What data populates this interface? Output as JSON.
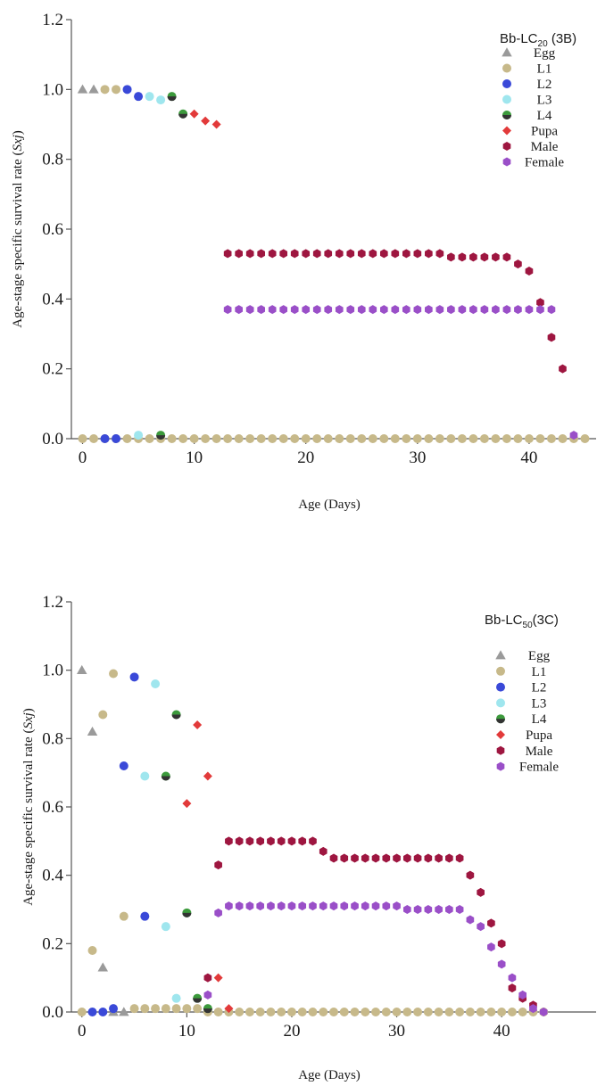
{
  "colors": {
    "Egg": "#9a9a9a",
    "L1": "#c7b98a",
    "L2": "#3a49d8",
    "L3": "#9fe6ee",
    "L4": "#3c9a3c",
    "Pupa": "#e23a3a",
    "Male": "#9e1640",
    "Female": "#9a4fc8"
  },
  "chart_data": [
    {
      "type": "scatter",
      "ylabel": "Age-stage specific survival rate (Sxj)",
      "xlabel": "Age (Days)",
      "xlim": [
        -1,
        46
      ],
      "ylim": [
        0,
        1.2
      ],
      "xticks": [
        "0",
        "10",
        "20",
        "30",
        "40"
      ],
      "yticks": [
        "0.0",
        "0.2",
        "0.4",
        "0.6",
        "0.8",
        "1.0",
        "1.2"
      ],
      "legend": {
        "title": "Bb-LC",
        "title_sub": "20",
        "title_suffix": " (3B)",
        "position": "top-right",
        "entries": [
          "Egg",
          "L1",
          "L2",
          "L3",
          "L4",
          "Pupa",
          "Male",
          "Female"
        ]
      },
      "series": [
        {
          "name": "Egg",
          "x": [
            0,
            1
          ],
          "y": [
            1.0,
            1.0
          ]
        },
        {
          "name": "L1",
          "x": [
            0,
            1,
            2,
            3,
            4,
            5,
            6,
            7,
            8,
            9,
            10,
            11,
            12,
            13,
            14,
            15,
            16,
            17,
            18,
            19,
            20,
            21,
            22,
            23,
            24,
            25,
            26,
            27,
            28,
            29,
            30,
            31,
            32,
            33,
            34,
            35,
            36,
            37,
            38,
            39,
            40,
            41,
            42,
            43,
            44,
            45,
            2,
            3
          ],
          "y": [
            0,
            0,
            0,
            0,
            0,
            0,
            0,
            0,
            0,
            0,
            0,
            0,
            0,
            0,
            0,
            0,
            0,
            0,
            0,
            0,
            0,
            0,
            0,
            0,
            0,
            0,
            0,
            0,
            0,
            0,
            0,
            0,
            0,
            0,
            0,
            0,
            0,
            0,
            0,
            0,
            0,
            0,
            0,
            0,
            0,
            0,
            1.0,
            1.0
          ]
        },
        {
          "name": "L2",
          "x": [
            2,
            3,
            4,
            5
          ],
          "y": [
            0,
            0,
            1.0,
            0.98
          ]
        },
        {
          "name": "L3",
          "x": [
            5,
            6,
            7
          ],
          "y": [
            0.01,
            0.98,
            0.97
          ]
        },
        {
          "name": "L4",
          "x": [
            7,
            8,
            9
          ],
          "y": [
            0.01,
            0.98,
            0.93
          ]
        },
        {
          "name": "Pupa",
          "x": [
            10,
            11,
            12
          ],
          "y": [
            0.93,
            0.91,
            0.9
          ]
        },
        {
          "name": "Male",
          "x": [
            13,
            14,
            15,
            16,
            17,
            18,
            19,
            20,
            21,
            22,
            23,
            24,
            25,
            26,
            27,
            28,
            29,
            30,
            31,
            32,
            33,
            34,
            35,
            36,
            37,
            38,
            39,
            40,
            41,
            42,
            43
          ],
          "y": [
            0.53,
            0.53,
            0.53,
            0.53,
            0.53,
            0.53,
            0.53,
            0.53,
            0.53,
            0.53,
            0.53,
            0.53,
            0.53,
            0.53,
            0.53,
            0.53,
            0.53,
            0.53,
            0.53,
            0.53,
            0.52,
            0.52,
            0.52,
            0.52,
            0.52,
            0.52,
            0.5,
            0.48,
            0.39,
            0.29,
            0.2
          ]
        },
        {
          "name": "Female",
          "x": [
            13,
            14,
            15,
            16,
            17,
            18,
            19,
            20,
            21,
            22,
            23,
            24,
            25,
            26,
            27,
            28,
            29,
            30,
            31,
            32,
            33,
            34,
            35,
            36,
            37,
            38,
            39,
            40,
            41,
            42,
            44
          ],
          "y": [
            0.37,
            0.37,
            0.37,
            0.37,
            0.37,
            0.37,
            0.37,
            0.37,
            0.37,
            0.37,
            0.37,
            0.37,
            0.37,
            0.37,
            0.37,
            0.37,
            0.37,
            0.37,
            0.37,
            0.37,
            0.37,
            0.37,
            0.37,
            0.37,
            0.37,
            0.37,
            0.37,
            0.37,
            0.37,
            0.37,
            0.01
          ]
        }
      ]
    },
    {
      "type": "scatter",
      "ylabel": "Age-stage specific survival rate (Sxj)",
      "xlabel": "Age (Days)",
      "xlim": [
        -1,
        49
      ],
      "ylim": [
        0,
        1.2
      ],
      "xticks": [
        "0",
        "10",
        "20",
        "30",
        "40"
      ],
      "yticks": [
        "0.0",
        "0.2",
        "0.4",
        "0.6",
        "0.8",
        "1.0",
        "1.2"
      ],
      "legend": {
        "title": "Bb-LC",
        "title_sub": "50",
        "title_suffix": "(3C)",
        "position": "top-right",
        "entries": [
          "Egg",
          "L1",
          "L2",
          "L3",
          "L4",
          "Pupa",
          "Male",
          "Female"
        ]
      },
      "series": [
        {
          "name": "Egg",
          "x": [
            0,
            1,
            2,
            3,
            4
          ],
          "y": [
            1.0,
            0.82,
            0.13,
            0.0,
            0.0
          ]
        },
        {
          "name": "L1",
          "x": [
            0,
            1,
            2,
            3,
            4,
            5,
            6,
            7,
            8,
            9,
            10,
            11,
            12,
            13,
            14,
            15,
            16,
            17,
            18,
            19,
            20,
            21,
            22,
            23,
            24,
            25,
            26,
            27,
            28,
            29,
            30,
            31,
            32,
            33,
            34,
            35,
            36,
            37,
            38,
            39,
            40,
            41,
            42,
            43,
            44
          ],
          "y": [
            0,
            0.18,
            0.87,
            0.99,
            0.28,
            0.01,
            0.01,
            0.01,
            0.01,
            0.01,
            0.01,
            0.01,
            0,
            0,
            0,
            0,
            0,
            0,
            0,
            0,
            0,
            0,
            0,
            0,
            0,
            0,
            0,
            0,
            0,
            0,
            0,
            0,
            0,
            0,
            0,
            0,
            0,
            0,
            0,
            0,
            0,
            0,
            0,
            0,
            0
          ]
        },
        {
          "name": "L2",
          "x": [
            1,
            2,
            3,
            4,
            5,
            6
          ],
          "y": [
            0,
            0,
            0.01,
            0.72,
            0.98,
            0.28
          ]
        },
        {
          "name": "L3",
          "x": [
            6,
            7,
            8,
            9
          ],
          "y": [
            0.69,
            0.96,
            0.25,
            0.04
          ]
        },
        {
          "name": "L4",
          "x": [
            8,
            9,
            10,
            11,
            12
          ],
          "y": [
            0.69,
            0.87,
            0.29,
            0.04,
            0.01
          ]
        },
        {
          "name": "Pupa",
          "x": [
            10,
            11,
            12,
            13,
            14
          ],
          "y": [
            0.61,
            0.84,
            0.69,
            0.1,
            0.01
          ]
        },
        {
          "name": "Male",
          "x": [
            12,
            13,
            14,
            15,
            16,
            17,
            18,
            19,
            20,
            21,
            22,
            23,
            24,
            25,
            26,
            27,
            28,
            29,
            30,
            31,
            32,
            33,
            34,
            35,
            36,
            37,
            38,
            39,
            40,
            41,
            42,
            43
          ],
          "y": [
            0.1,
            0.43,
            0.5,
            0.5,
            0.5,
            0.5,
            0.5,
            0.5,
            0.5,
            0.5,
            0.5,
            0.47,
            0.45,
            0.45,
            0.45,
            0.45,
            0.45,
            0.45,
            0.45,
            0.45,
            0.45,
            0.45,
            0.45,
            0.45,
            0.45,
            0.4,
            0.35,
            0.26,
            0.2,
            0.07,
            0.04,
            0.02
          ]
        },
        {
          "name": "Female",
          "x": [
            12,
            13,
            14,
            15,
            16,
            17,
            18,
            19,
            20,
            21,
            22,
            23,
            24,
            25,
            26,
            27,
            28,
            29,
            30,
            31,
            32,
            33,
            34,
            35,
            36,
            37,
            38,
            39,
            40,
            41,
            42,
            43,
            44
          ],
          "y": [
            0.05,
            0.29,
            0.31,
            0.31,
            0.31,
            0.31,
            0.31,
            0.31,
            0.31,
            0.31,
            0.31,
            0.31,
            0.31,
            0.31,
            0.31,
            0.31,
            0.31,
            0.31,
            0.31,
            0.3,
            0.3,
            0.3,
            0.3,
            0.3,
            0.3,
            0.27,
            0.25,
            0.19,
            0.14,
            0.1,
            0.05,
            0.01,
            0.0
          ]
        }
      ]
    }
  ]
}
